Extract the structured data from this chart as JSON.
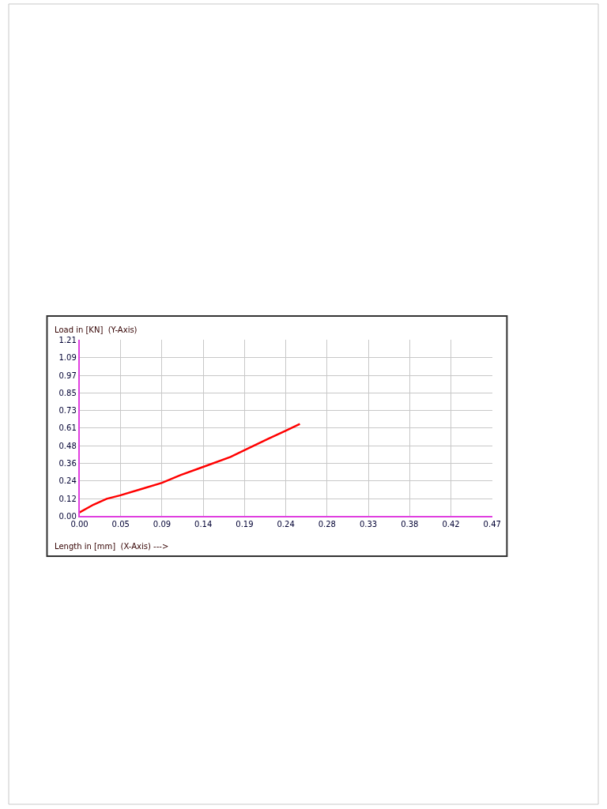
{
  "chart_data": {
    "type": "line",
    "xlabel": "Length in [mm]  (X-Axis) --->",
    "ylabel": "Load in [KN]  (Y-Axis)",
    "xlim": [
      0,
      0.47
    ],
    "ylim": [
      0,
      1.21
    ],
    "xticks": [
      {
        "value": 0,
        "label": "0.00"
      },
      {
        "value": 0.047,
        "label": "0.05"
      },
      {
        "value": 0.094,
        "label": "0.09"
      },
      {
        "value": 0.141,
        "label": "0.14"
      },
      {
        "value": 0.188,
        "label": "0.19"
      },
      {
        "value": 0.235,
        "label": "0.24"
      },
      {
        "value": 0.282,
        "label": "0.28"
      },
      {
        "value": 0.329,
        "label": "0.33"
      },
      {
        "value": 0.376,
        "label": "0.38"
      },
      {
        "value": 0.423,
        "label": "0.42"
      },
      {
        "value": 0.47,
        "label": "0.47"
      }
    ],
    "yticks": [
      {
        "value": 0,
        "label": "0.00"
      },
      {
        "value": 0.121,
        "label": "0.12"
      },
      {
        "value": 0.242,
        "label": "0.24"
      },
      {
        "value": 0.363,
        "label": "0.36"
      },
      {
        "value": 0.484,
        "label": "0.48"
      },
      {
        "value": 0.605,
        "label": "0.61"
      },
      {
        "value": 0.726,
        "label": "0.73"
      },
      {
        "value": 0.847,
        "label": "0.85"
      },
      {
        "value": 0.968,
        "label": "0.97"
      },
      {
        "value": 1.089,
        "label": "1.09"
      },
      {
        "value": 1.21,
        "label": "1.21"
      }
    ],
    "grid": true,
    "marker": "none",
    "line_style": "solid",
    "x": [
      0,
      0.016,
      0.031,
      0.046,
      0.069,
      0.094,
      0.115,
      0.139,
      0.172,
      0.192,
      0.215,
      0.235,
      0.251
    ],
    "series": [
      {
        "color": "#ff0000",
        "values": [
          0.025,
          0.079,
          0.119,
          0.142,
          0.184,
          0.229,
          0.282,
          0.334,
          0.407,
          0.465,
          0.532,
          0.588,
          0.634
        ]
      }
    ]
  }
}
